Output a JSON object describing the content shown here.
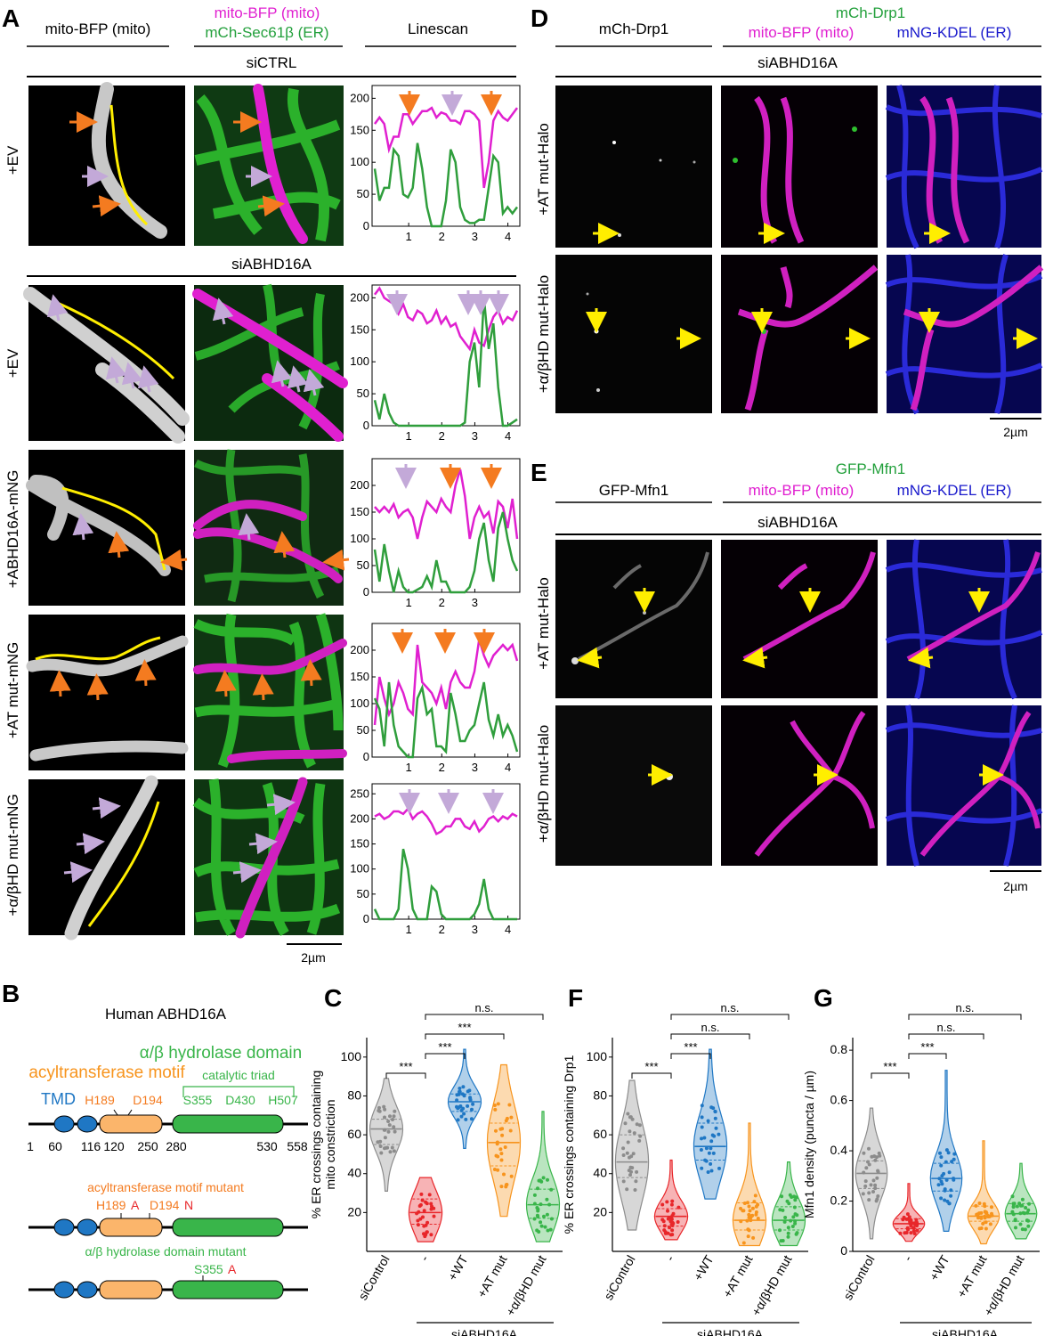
{
  "panel_letters": {
    "a": "A",
    "b": "B",
    "c": "C",
    "d": "D",
    "e": "E",
    "f": "F",
    "g": "G"
  },
  "panel_a": {
    "col1": "mito-BFP (mito)",
    "col2_line1": "mito-BFP (mito)",
    "col2_line2": "mCh-Sec61β (ER)",
    "col3": "Linescan",
    "group1": "siCTRL",
    "group2": "siABHD16A",
    "rows": [
      "+EV",
      "+EV",
      "+ABHD16A-mNG",
      "+AT mut-mNG",
      "+α/βHD mut-mNG"
    ],
    "scalebar": "2µm",
    "linescans": [
      {
        "yticks": [
          "50",
          "100",
          "150",
          "200"
        ],
        "xticks": [
          "1",
          "2",
          "3",
          "4"
        ],
        "magenta": [
          160,
          170,
          160,
          120,
          140,
          140,
          175,
          175,
          160,
          170,
          180,
          180,
          185,
          170,
          178,
          175,
          165,
          165,
          160,
          180,
          180,
          175,
          165,
          60,
          100,
          165,
          180,
          170,
          165,
          175,
          185
        ],
        "green": [
          90,
          40,
          60,
          60,
          120,
          110,
          50,
          45,
          60,
          130,
          90,
          30,
          0,
          0,
          0,
          40,
          120,
          100,
          30,
          10,
          5,
          5,
          10,
          10,
          60,
          110,
          100,
          20,
          30,
          20,
          30
        ]
      },
      {
        "yticks": [
          "50",
          "100",
          "150",
          "200"
        ],
        "xticks": [
          "1",
          "2",
          "3",
          "4"
        ],
        "magenta": [
          205,
          215,
          200,
          195,
          190,
          175,
          190,
          170,
          165,
          180,
          175,
          160,
          165,
          180,
          160,
          170,
          155,
          160,
          140,
          130,
          120,
          150,
          130,
          125,
          150,
          170,
          180,
          160,
          170,
          165,
          180
        ],
        "green": [
          40,
          10,
          50,
          20,
          5,
          0,
          0,
          0,
          0,
          0,
          0,
          0,
          0,
          0,
          0,
          0,
          0,
          0,
          0,
          5,
          100,
          130,
          60,
          200,
          120,
          160,
          60,
          0,
          0,
          5,
          10
        ]
      },
      {
        "yticks": [
          "50",
          "100",
          "150",
          "200"
        ],
        "xticks": [
          "1",
          "2",
          "3"
        ],
        "magenta": [
          160,
          150,
          160,
          150,
          165,
          140,
          150,
          155,
          140,
          100,
          140,
          170,
          160,
          150,
          175,
          160,
          150,
          200,
          230,
          180,
          100,
          140,
          160,
          140,
          150,
          110,
          170,
          160,
          120,
          175,
          100
        ],
        "green": [
          80,
          20,
          90,
          40,
          0,
          40,
          10,
          0,
          0,
          5,
          10,
          30,
          10,
          60,
          20,
          20,
          0,
          0,
          0,
          0,
          10,
          40,
          100,
          130,
          60,
          20,
          120,
          150,
          100,
          60,
          40
        ]
      },
      {
        "yticks": [
          "50",
          "100",
          "150",
          "200"
        ],
        "xticks": [
          "1",
          "2",
          "3",
          "4"
        ],
        "magenta": [
          60,
          150,
          110,
          80,
          100,
          140,
          120,
          90,
          80,
          210,
          140,
          130,
          120,
          100,
          130,
          90,
          140,
          160,
          140,
          130,
          130,
          160,
          220,
          190,
          170,
          190,
          200,
          210,
          200,
          210,
          180
        ],
        "green": [
          110,
          90,
          20,
          140,
          60,
          20,
          10,
          0,
          0,
          110,
          130,
          80,
          90,
          20,
          20,
          10,
          120,
          80,
          30,
          30,
          50,
          60,
          100,
          140,
          70,
          40,
          80,
          40,
          60,
          40,
          10
        ]
      },
      {
        "yticks": [
          "50",
          "100",
          "150",
          "200",
          "250"
        ],
        "xticks": [
          "1",
          "2",
          "3",
          "4"
        ],
        "magenta": [
          205,
          210,
          200,
          205,
          215,
          215,
          210,
          220,
          200,
          210,
          215,
          205,
          190,
          170,
          175,
          185,
          185,
          200,
          200,
          185,
          180,
          195,
          175,
          185,
          200,
          205,
          195,
          205,
          200,
          210,
          205
        ],
        "green": [
          20,
          0,
          0,
          0,
          0,
          20,
          140,
          100,
          20,
          0,
          0,
          0,
          65,
          55,
          10,
          0,
          0,
          0,
          0,
          0,
          0,
          10,
          30,
          80,
          20,
          0,
          0,
          0,
          0,
          0,
          0
        ]
      }
    ]
  },
  "panel_b": {
    "title": "Human ABHD16A",
    "hd_label": "α/β hydrolase domain",
    "at_label": "acyltransferase motif",
    "triad_label": "catalytic triad",
    "tmd": "TMD",
    "residues": {
      "h189": "H189",
      "d194": "D194",
      "s355": "S355",
      "d430": "D430",
      "h507": "H507"
    },
    "positions": [
      "1",
      "60",
      "116",
      "120",
      "250",
      "280",
      "530",
      "558"
    ],
    "at_mut_title": "acyltransferase motif mutant",
    "at_mut_h": "H189",
    "at_mut_h_suffix": "A",
    "at_mut_d": "D194",
    "at_mut_d_suffix": "N",
    "hd_mut_title": "α/β hydrolase domain mutant",
    "hd_mut_s": "S355",
    "hd_mut_s_suffix": "A"
  },
  "panel_c": {
    "ylabel_line1": "% ER crossings containing",
    "ylabel_line2": "mito constriction",
    "yticks": [
      "20",
      "40",
      "60",
      "80",
      "100"
    ],
    "categories": [
      "siControl",
      "-",
      "+WT",
      "+AT mut",
      "+α/βHD mut"
    ],
    "group_label": "siABHD16A",
    "sig": [
      "***",
      "***",
      "***",
      "n.s."
    ]
  },
  "panel_f": {
    "ylabel": "% ER crossings containing Drp1",
    "yticks": [
      "20",
      "40",
      "60",
      "80",
      "100"
    ],
    "categories": [
      "siControl",
      "-",
      "+WT",
      "+AT mut",
      "+α/βHD mut"
    ],
    "group_label": "siABHD16A",
    "sig": [
      "***",
      "***",
      "n.s.",
      "n.s."
    ]
  },
  "panel_g": {
    "ylabel": "Mfn1 density (puncta / µm)",
    "yticks": [
      "0",
      "0.2",
      "0.4",
      "0.6",
      "0.8"
    ],
    "categories": [
      "siControl",
      "-",
      "+WT",
      "+AT mut",
      "+α/βHD mut"
    ],
    "group_label": "siABHD16A",
    "sig": [
      "***",
      "***",
      "n.s.",
      "n.s."
    ]
  },
  "panel_d": {
    "col1": "mCh-Drp1",
    "col2_line1": "mCh-Drp1",
    "col2_line2a": "mito-BFP (mito)",
    "col2_line2b": "mNG-KDEL (ER)",
    "group": "siABHD16A",
    "rows": [
      "+AT mut-Halo",
      "+α/βHD mut-Halo"
    ],
    "scalebar": "2µm"
  },
  "panel_e": {
    "col1": "GFP-Mfn1",
    "col2_line1": "GFP-Mfn1",
    "col2_line2a": "mito-BFP (mito)",
    "col2_line2b": "mNG-KDEL (ER)",
    "group": "siABHD16A",
    "rows": [
      "+AT mut-Halo",
      "+α/βHD mut-Halo"
    ],
    "scalebar": "2µm"
  },
  "chart_data": [
    {
      "type": "violin",
      "title": "",
      "ylabel": "% ER crossings containing mito constriction",
      "ylim": [
        0,
        110
      ],
      "categories": [
        "siControl",
        "-",
        "+WT",
        "+AT mut",
        "+α/βHD mut"
      ],
      "medians": [
        63,
        20,
        77,
        56,
        24
      ],
      "q1": [
        55,
        14,
        72,
        44,
        17
      ],
      "q3": [
        68,
        27,
        81,
        66,
        32
      ],
      "min": [
        31,
        5,
        53,
        18,
        5
      ],
      "max": [
        89,
        38,
        104,
        96,
        72
      ],
      "colors": [
        "#8c8c8c",
        "#e8262a",
        "#1f77c4",
        "#f7941d",
        "#39b54a"
      ]
    },
    {
      "type": "violin",
      "title": "",
      "ylabel": "% ER crossings containing Drp1",
      "ylim": [
        0,
        110
      ],
      "categories": [
        "siControl",
        "-",
        "+WT",
        "+AT mut",
        "+α/βHD mut"
      ],
      "medians": [
        46,
        18,
        54,
        16,
        16
      ],
      "q1": [
        38,
        13,
        47,
        11,
        11
      ],
      "q3": [
        60,
        22,
        66,
        25,
        23
      ],
      "min": [
        11,
        6,
        27,
        3,
        3
      ],
      "max": [
        88,
        47,
        104,
        66,
        46
      ],
      "colors": [
        "#8c8c8c",
        "#e8262a",
        "#1f77c4",
        "#f7941d",
        "#39b54a"
      ]
    },
    {
      "type": "violin",
      "title": "",
      "ylabel": "Mfn1 density (puncta / µm)",
      "ylim": [
        0,
        0.85
      ],
      "categories": [
        "siControl",
        "-",
        "+WT",
        "+AT mut",
        "+α/βHD mut"
      ],
      "medians": [
        0.31,
        0.11,
        0.29,
        0.14,
        0.15
      ],
      "q1": [
        0.25,
        0.09,
        0.24,
        0.12,
        0.12
      ],
      "q3": [
        0.36,
        0.13,
        0.35,
        0.18,
        0.19
      ],
      "min": [
        0.05,
        0.04,
        0.08,
        0.03,
        0.05
      ],
      "max": [
        0.57,
        0.27,
        0.72,
        0.44,
        0.35
      ],
      "colors": [
        "#8c8c8c",
        "#e8262a",
        "#1f77c4",
        "#f7941d",
        "#39b54a"
      ]
    }
  ]
}
